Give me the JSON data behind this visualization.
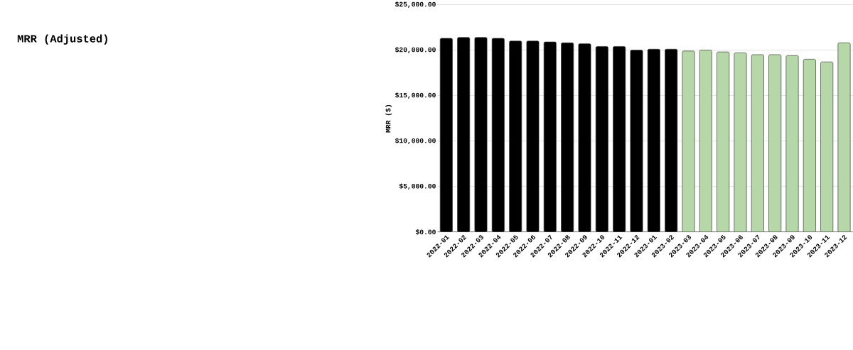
{
  "chart_data": {
    "type": "bar",
    "title": "MRR (Adjusted)",
    "ylabel": "MRR ($)",
    "categories": [
      "2022-01",
      "2022-02",
      "2022-03",
      "2022-04",
      "2022-05",
      "2022-06",
      "2022-07",
      "2022-08",
      "2022-09",
      "2022-10",
      "2022-11",
      "2022-12",
      "2023-01",
      "2023-02",
      "2023-03",
      "2023-04",
      "2023-05",
      "2023-06",
      "2023-07",
      "2023-08",
      "2023-09",
      "2023-10",
      "2023-11",
      "2023-12"
    ],
    "values": [
      21300,
      21400,
      21400,
      21300,
      21000,
      21000,
      20900,
      20800,
      20700,
      20400,
      20400,
      20000,
      20100,
      20100,
      19900,
      20000,
      19800,
      19700,
      19500,
      19500,
      19400,
      19000,
      18700,
      20800
    ],
    "colors": [
      "#000000",
      "#000000",
      "#000000",
      "#000000",
      "#000000",
      "#000000",
      "#000000",
      "#000000",
      "#000000",
      "#000000",
      "#000000",
      "#000000",
      "#000000",
      "#000000",
      "#b6d7a8",
      "#b6d7a8",
      "#b6d7a8",
      "#b6d7a8",
      "#b6d7a8",
      "#b6d7a8",
      "#b6d7a8",
      "#b6d7a8",
      "#b6d7a8",
      "#b6d7a8"
    ],
    "ylim": [
      0,
      25000
    ],
    "yticks": [
      {
        "value": 0,
        "label": "$0.00"
      },
      {
        "value": 5000,
        "label": "$5,000.00"
      },
      {
        "value": 10000,
        "label": "$10,000.00"
      },
      {
        "value": 15000,
        "label": "$15,000.00"
      },
      {
        "value": 20000,
        "label": "$20,000.00"
      },
      {
        "value": 25000,
        "label": "$25,000.00"
      }
    ],
    "grid": "y"
  }
}
